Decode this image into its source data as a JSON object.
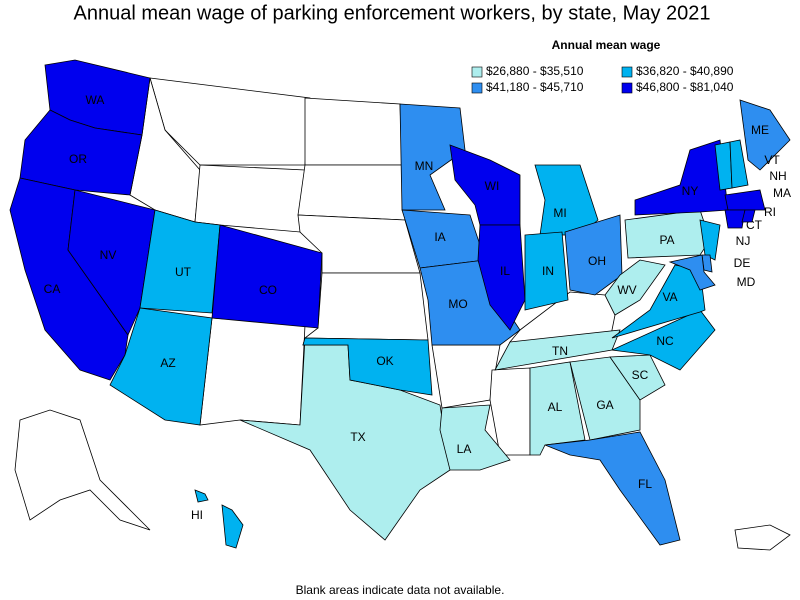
{
  "title": "Annual mean wage of parking enforcement workers, by state, May 2021",
  "legend": {
    "title": "Annual mean wage",
    "entries": [
      {
        "label": "$26,880 - $35,510",
        "color": "#aeeeee"
      },
      {
        "label": "$36,820 - $40,890",
        "color": "#00b2f0"
      },
      {
        "label": "$41,180 - $45,710",
        "color": "#2e8ef0"
      },
      {
        "label": "$46,800 - $81,040",
        "color": "#0000ee"
      }
    ]
  },
  "states": [
    {
      "label": "WA",
      "color": "#0000ee"
    },
    {
      "label": "OR",
      "color": "#0000ee"
    },
    {
      "label": "CA",
      "color": "#0000ee"
    },
    {
      "label": "NV",
      "color": "#0000ee"
    },
    {
      "label": "UT",
      "color": "#00b2f0"
    },
    {
      "label": "CO",
      "color": "#0000ee"
    },
    {
      "label": "AZ",
      "color": "#00b2f0"
    },
    {
      "label": "TX",
      "color": "#aeeeee"
    },
    {
      "label": "OK",
      "color": "#00b2f0"
    },
    {
      "label": "LA",
      "color": "#aeeeee"
    },
    {
      "label": "MN",
      "color": "#2e8ef0"
    },
    {
      "label": "IA",
      "color": "#2e8ef0"
    },
    {
      "label": "MO",
      "color": "#2e8ef0"
    },
    {
      "label": "WI",
      "color": "#0000ee"
    },
    {
      "label": "IL",
      "color": "#0000ee"
    },
    {
      "label": "MI",
      "color": "#00b2f0"
    },
    {
      "label": "IN",
      "color": "#00b2f0"
    },
    {
      "label": "OH",
      "color": "#2e8ef0"
    },
    {
      "label": "TN",
      "color": "#aeeeee"
    },
    {
      "label": "AL",
      "color": "#aeeeee"
    },
    {
      "label": "GA",
      "color": "#aeeeee"
    },
    {
      "label": "FL",
      "color": "#2e8ef0"
    },
    {
      "label": "SC",
      "color": "#aeeeee"
    },
    {
      "label": "NC",
      "color": "#00b2f0"
    },
    {
      "label": "VA",
      "color": "#00b2f0"
    },
    {
      "label": "WV",
      "color": "#aeeeee"
    },
    {
      "label": "PA",
      "color": "#aeeeee"
    },
    {
      "label": "NY",
      "color": "#0000ee"
    },
    {
      "label": "NJ",
      "color": "#00b2f0"
    },
    {
      "label": "DE",
      "color": "#2e8ef0"
    },
    {
      "label": "MD",
      "color": "#2e8ef0"
    },
    {
      "label": "ME",
      "color": "#2e8ef0"
    },
    {
      "label": "VT",
      "color": "#00b2f0"
    },
    {
      "label": "NH",
      "color": "#00b2f0"
    },
    {
      "label": "MA",
      "color": "#0000ee"
    },
    {
      "label": "CT",
      "color": "#0000ee"
    },
    {
      "label": "RI",
      "color": "#0000ee"
    },
    {
      "label": "HI",
      "color": "#00b2f0"
    }
  ],
  "footnote": "Blank areas indicate data not available."
}
